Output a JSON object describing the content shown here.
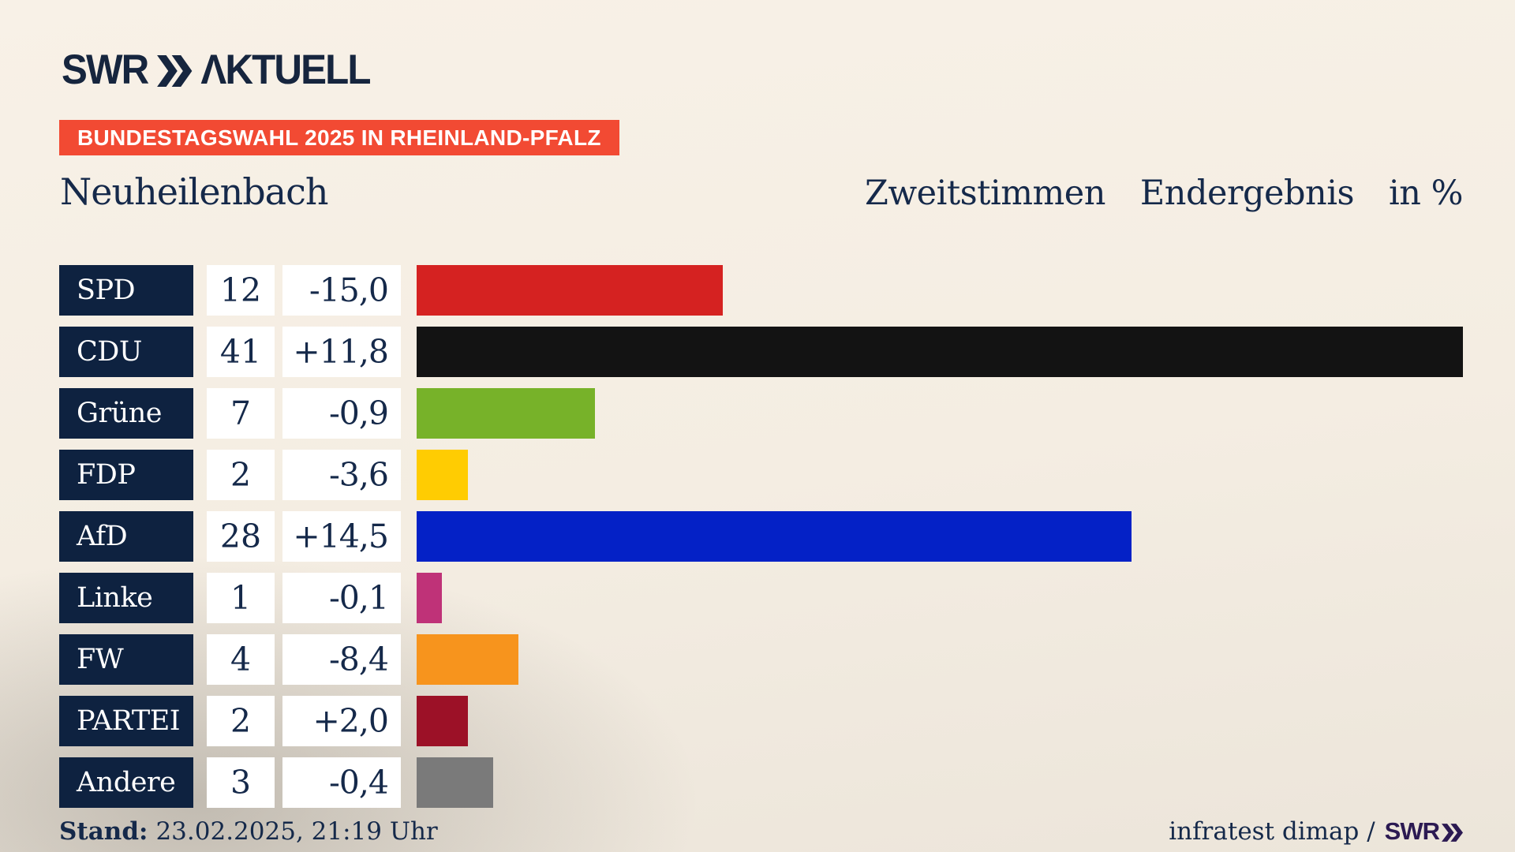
{
  "brand": {
    "swr": "SWR",
    "aktuell": "ΛKTUELL"
  },
  "banner": {
    "text": "BUNDESTAGSWAHL 2025 IN RHEINLAND-PFALZ"
  },
  "titles": {
    "municipality": "Neuheilenbach",
    "vote_type": "Zweitstimmen",
    "result_type": "Endergebnis",
    "unit": "in %"
  },
  "chart_data": {
    "type": "bar",
    "orientation": "horizontal",
    "title": "Zweitstimmen Endergebnis in %",
    "unit": "%",
    "plot_max": 41,
    "grid": false,
    "categories": [
      "SPD",
      "CDU",
      "Grüne",
      "FDP",
      "AfD",
      "Linke",
      "FW",
      "PARTEI",
      "Andere"
    ],
    "values": [
      12,
      41,
      7,
      2,
      28,
      1,
      4,
      2,
      3
    ],
    "display_values": [
      "12",
      "41",
      "7",
      "2",
      "28",
      "1",
      "4",
      "2",
      "3"
    ],
    "diffs": [
      "-15,0",
      "+11,8",
      "-0,9",
      "-3,6",
      "+14,5",
      "-0,1",
      "-8,4",
      "+2,0",
      "-0,4"
    ],
    "bar_colors": [
      "#d52221",
      "#131313",
      "#77b229",
      "#ffcc02",
      "#0421c6",
      "#bf3278",
      "#f7941d",
      "#9c1127",
      "#7a7a7a"
    ]
  },
  "footer": {
    "stand_label": "Stand:",
    "stand_value": "23.02.2025, 21:19 Uhr",
    "source_text": "infratest dimap /",
    "source_brand": "SWR"
  },
  "icons": {
    "logo_chevrons": "double-chevron-right",
    "footer_chevrons": "double-chevron-right"
  },
  "colors": {
    "bg_top": "#f8f1e7",
    "bg_mid": "#f4ede2",
    "bg_bottom": "#ece5da",
    "text_navy": "#15294a",
    "box_navy": "#0e2240",
    "logo_navy": "#16253e",
    "banner_red": "#f24a33",
    "box_white": "#ffffff",
    "brand_purple": "#2c1a52"
  }
}
